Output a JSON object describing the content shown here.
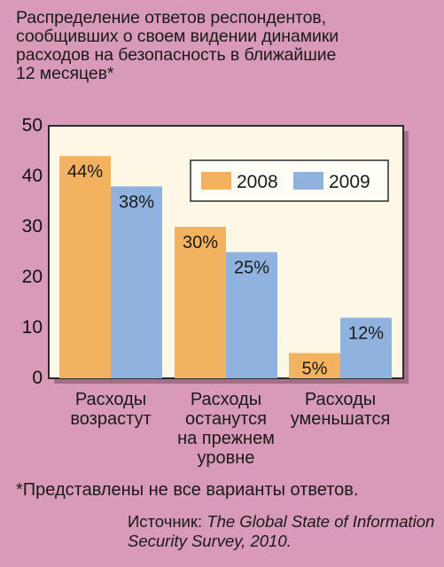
{
  "title": "Распределение ответов респондентов,\nсообщивших о своем видении динамики\nрасходов на безопасность в ближайшие\n12 месяцев*",
  "footnote": "*Представлены не все варианты ответов.",
  "source": {
    "prefix": "Источник: ",
    "title_line1": "The Global State of Information",
    "title_line2": "Security Survey, 2010."
  },
  "colors": {
    "page_background": "#d89ab8",
    "plot_background": "#fdf8e6",
    "plot_border": "#2b2b2b",
    "series_2008": "#f2b25f",
    "series_2009": "#8fb3de"
  },
  "chart_data": {
    "type": "bar",
    "title": "Распределение ответов респондентов, сообщивших о своем видении динамики расходов на безопасность в ближайшие 12 месяцев*",
    "categories": [
      "Расходы\nвозрастут",
      "Расходы\nостанутся\nна прежнем\nуровне",
      "Расходы\nуменьшатся"
    ],
    "series": [
      {
        "name": "2008",
        "values": [
          44,
          30,
          5
        ],
        "labels": [
          "44%",
          "30%",
          "5%"
        ],
        "color": "#f2b25f"
      },
      {
        "name": "2009",
        "values": [
          38,
          25,
          12
        ],
        "labels": [
          "38%",
          "25%",
          "12%"
        ],
        "color": "#8fb3de"
      }
    ],
    "xlabel": "",
    "ylabel": "",
    "ylim": [
      0,
      50
    ],
    "yticks": [
      "0",
      "10",
      "20",
      "30",
      "40",
      "50"
    ],
    "grid": false,
    "legend": "top-right"
  }
}
